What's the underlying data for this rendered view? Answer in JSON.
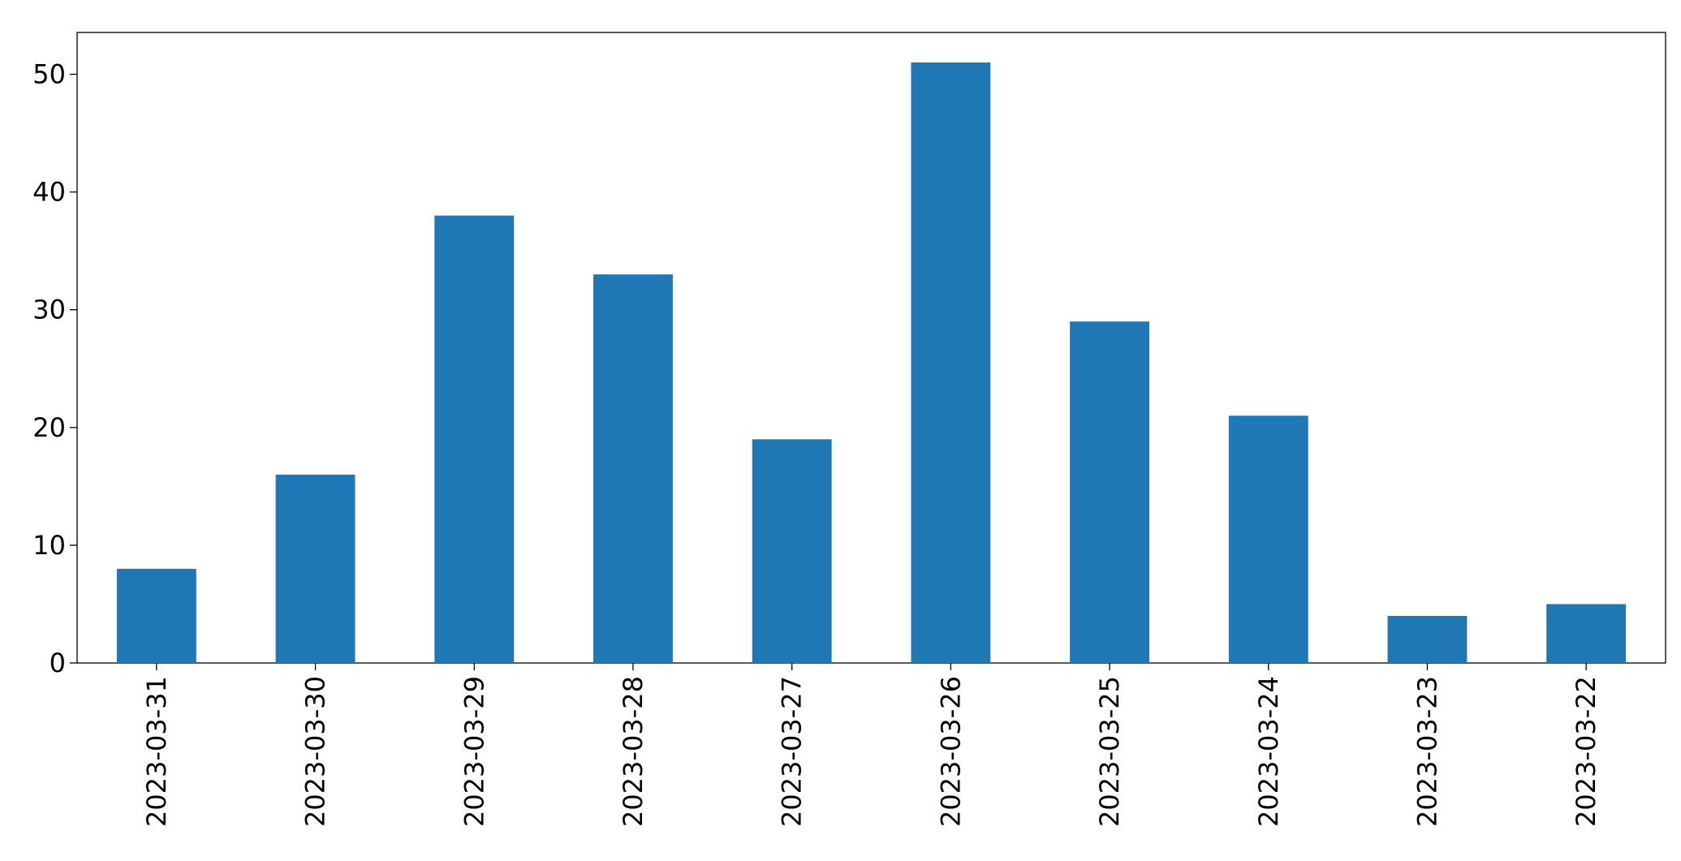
{
  "chart_data": {
    "type": "bar",
    "categories": [
      "2023-03-31",
      "2023-03-30",
      "2023-03-29",
      "2023-03-28",
      "2023-03-27",
      "2023-03-26",
      "2023-03-25",
      "2023-03-24",
      "2023-03-23",
      "2023-03-22"
    ],
    "values": [
      8,
      16,
      38,
      33,
      19,
      51,
      29,
      21,
      4,
      5
    ],
    "color": "#1f77b4",
    "ylim": [
      0,
      53.55
    ],
    "yticks": [
      0,
      10,
      20,
      30,
      40,
      50
    ],
    "grid": false
  }
}
